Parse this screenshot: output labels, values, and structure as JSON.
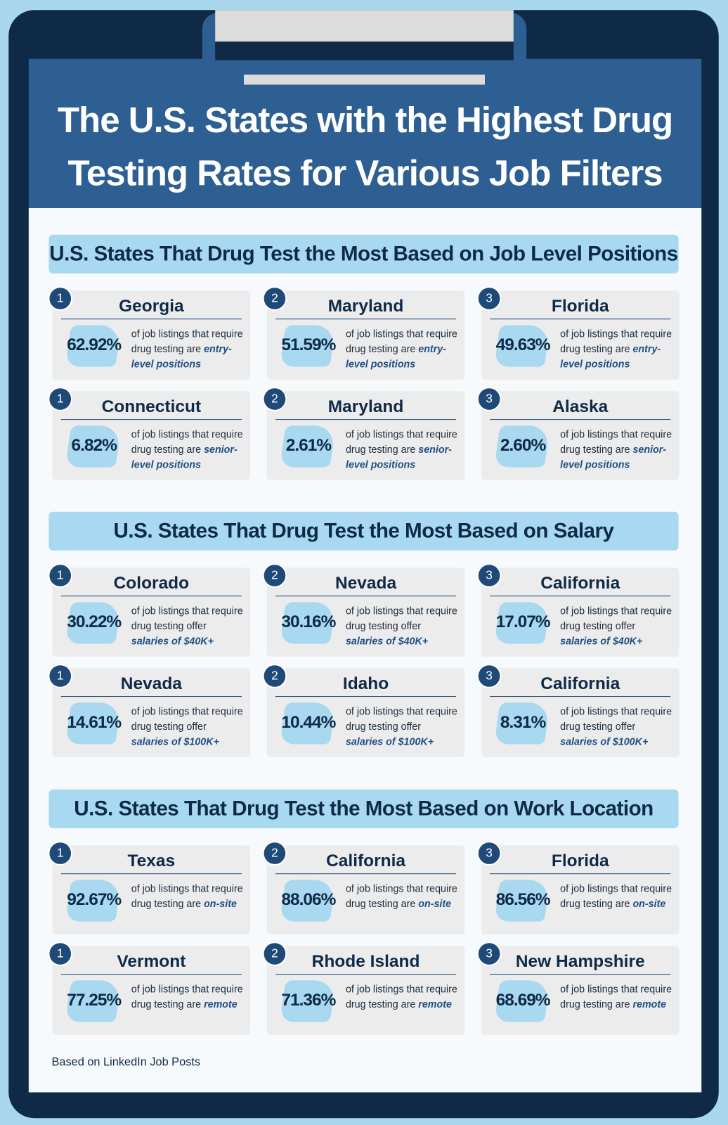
{
  "header": {
    "title": "The U.S. States with the Highest Drug Testing Rates for Various Job Filters"
  },
  "sections": [
    {
      "heading": "U.S. States That Drug Test the Most Based on Job Level Positions",
      "cards": [
        {
          "rank": 1,
          "state": "Georgia",
          "value": "62.92%",
          "desc": "of job listings that require drug testing are",
          "emph": "entry-level positions"
        },
        {
          "rank": 2,
          "state": "Maryland",
          "value": "51.59%",
          "desc": "of job listings that require drug testing are",
          "emph": "entry-level positions"
        },
        {
          "rank": 3,
          "state": "Florida",
          "value": "49.63%",
          "desc": "of job listings that require drug testing are",
          "emph": "entry-level positions"
        },
        {
          "rank": 1,
          "state": "Connecticut",
          "value": "6.82%",
          "desc": "of job listings that require drug testing are",
          "emph": "senior-level positions"
        },
        {
          "rank": 2,
          "state": "Maryland",
          "value": "2.61%",
          "desc": "of job listings that require drug testing are",
          "emph": "senior-level positions"
        },
        {
          "rank": 3,
          "state": "Alaska",
          "value": "2.60%",
          "desc": "of job listings that require drug testing are",
          "emph": "senior-level positions"
        }
      ]
    },
    {
      "heading": "U.S. States That Drug Test the Most Based on Salary",
      "cards": [
        {
          "rank": 1,
          "state": "Colorado",
          "value": "30.22%",
          "desc": "of job listings that require drug testing offer",
          "emph": "salaries of $40K+"
        },
        {
          "rank": 2,
          "state": "Nevada",
          "value": "30.16%",
          "desc": "of job listings that require drug testing offer",
          "emph": "salaries of $40K+"
        },
        {
          "rank": 3,
          "state": "California",
          "value": "17.07%",
          "desc": "of job listings that require drug testing offer",
          "emph": "salaries of $40K+"
        },
        {
          "rank": 1,
          "state": "Nevada",
          "value": "14.61%",
          "desc": "of job listings that require drug testing offer",
          "emph": "salaries of $100K+"
        },
        {
          "rank": 2,
          "state": "Idaho",
          "value": "10.44%",
          "desc": "of job listings that require drug testing offer",
          "emph": "salaries of $100K+"
        },
        {
          "rank": 3,
          "state": "California",
          "value": "8.31%",
          "desc": "of job listings that require drug testing offer",
          "emph": "salaries of $100K+"
        }
      ]
    },
    {
      "heading": "U.S. States That Drug Test the Most Based on Work Location",
      "cards": [
        {
          "rank": 1,
          "state": "Texas",
          "value": "92.67%",
          "desc": "of job listings that require drug testing are",
          "emph": "on-site"
        },
        {
          "rank": 2,
          "state": "California",
          "value": "88.06%",
          "desc": "of job listings that require drug testing are",
          "emph": "on-site"
        },
        {
          "rank": 3,
          "state": "Florida",
          "value": "86.56%",
          "desc": "of job listings that require drug testing are",
          "emph": "on-site"
        },
        {
          "rank": 1,
          "state": "Vermont",
          "value": "77.25%",
          "desc": "of job listings that require drug testing are",
          "emph": "remote"
        },
        {
          "rank": 2,
          "state": "Rhode Island",
          "value": "71.36%",
          "desc": "of job listings that require drug testing are",
          "emph": "remote"
        },
        {
          "rank": 3,
          "state": "New Hampshire",
          "value": "68.69%",
          "desc": "of job listings that require drug testing are",
          "emph": "remote"
        }
      ]
    }
  ],
  "footer": {
    "note": "Based on LinkedIn Job Posts"
  }
}
